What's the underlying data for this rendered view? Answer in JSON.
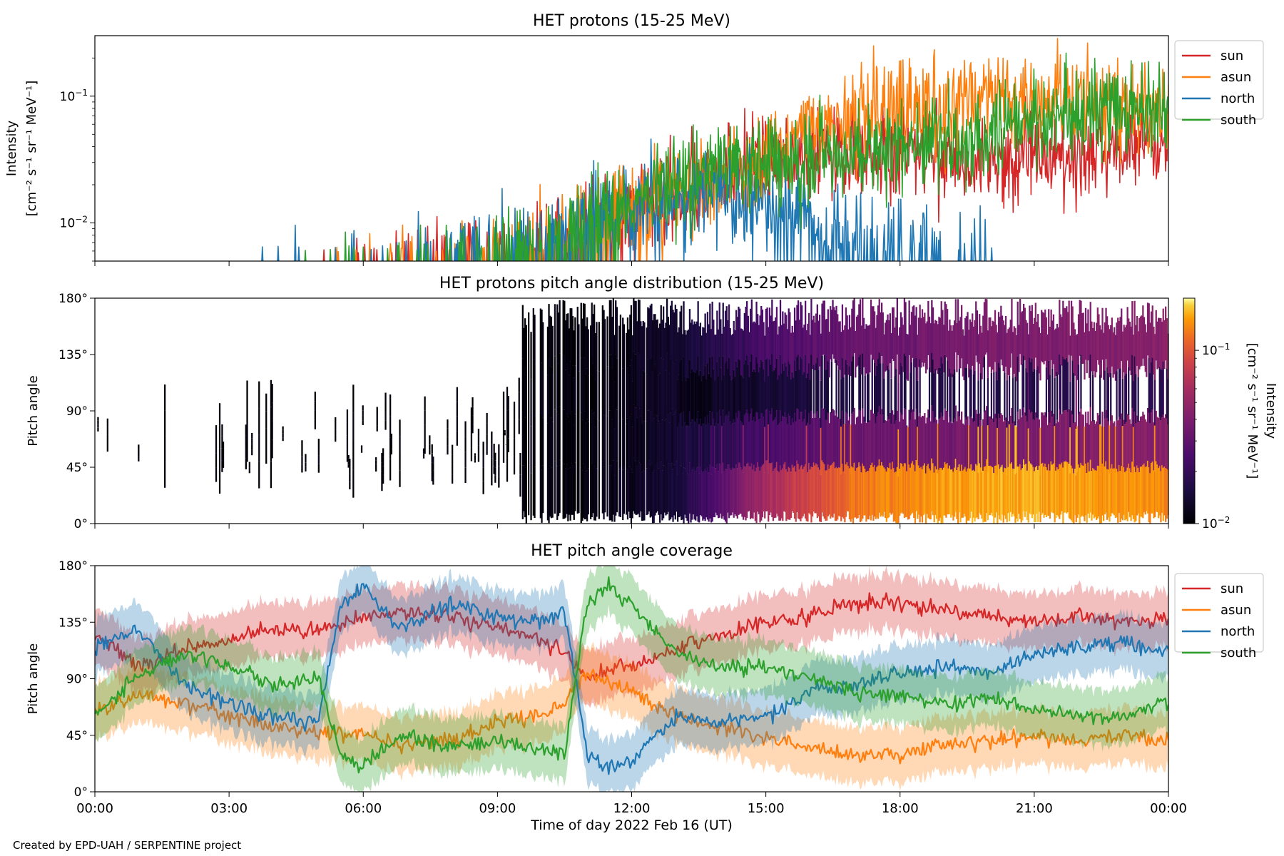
{
  "footer": {
    "credit": "Created by EPD-UAH / SERPENTINE project"
  },
  "chart_data": [
    {
      "type": "line",
      "title": "HET protons (15-25 MeV)",
      "ylabel_line1": "Intensity",
      "ylabel_line2": "[cm⁻² s⁻¹ sr⁻¹ MeV⁻¹]",
      "yscale": "log",
      "ylim": [
        0.005,
        0.3
      ],
      "yticks": [
        {
          "value": 0.01,
          "base": "10",
          "exp": "−2"
        },
        {
          "value": 0.1,
          "base": "10",
          "exp": "−1"
        }
      ],
      "xlim": [
        0,
        24
      ],
      "legend_position": "upper-right-outside",
      "series": [
        {
          "name": "sun",
          "color": "#d62728"
        },
        {
          "name": "asun",
          "color": "#ff7f0e"
        },
        {
          "name": "north",
          "color": "#1f77b4"
        },
        {
          "name": "south",
          "color": "#2ca02c"
        }
      ],
      "detection_floor": 0.0058,
      "envelope": {
        "hours": [
          0,
          6,
          9,
          10.5,
          11.5,
          12.5,
          13.5,
          15,
          16.5,
          18,
          20,
          21.5,
          24
        ],
        "sun": [
          0,
          0.004,
          0.006,
          0.009,
          0.012,
          0.016,
          0.02,
          0.028,
          0.034,
          0.034,
          0.03,
          0.035,
          0.045
        ],
        "asun": [
          0,
          0.004,
          0.006,
          0.009,
          0.012,
          0.016,
          0.02,
          0.028,
          0.07,
          0.08,
          0.09,
          0.1,
          0.07
        ],
        "north": [
          0,
          0.004,
          0.006,
          0.009,
          0.012,
          0.015,
          0.016,
          0.014,
          0.01,
          0.008,
          0.004,
          0.001,
          0.0005
        ],
        "south": [
          0,
          0.004,
          0.006,
          0.009,
          0.013,
          0.018,
          0.024,
          0.03,
          0.035,
          0.04,
          0.05,
          0.07,
          0.08
        ]
      }
    },
    {
      "type": "heatmap",
      "title": "HET protons pitch angle distribution (15-25 MeV)",
      "ylabel": "Pitch angle",
      "ylim": [
        0,
        180
      ],
      "yticks": [
        "0°",
        "45°",
        "90°",
        "135°",
        "180°"
      ],
      "xlim": [
        0,
        24
      ],
      "colormap": "inferno",
      "colorbar": {
        "label_line1": "Intensity",
        "label_line2": "[cm⁻² s⁻¹ sr⁻¹ MeV⁻¹]",
        "scale": "log",
        "range": [
          0.01,
          0.2
        ],
        "ticks": [
          {
            "value": 0.01,
            "base": "10",
            "exp": "−2"
          },
          {
            "value": 0.1,
            "base": "10",
            "exp": "−1"
          }
        ]
      }
    },
    {
      "type": "area",
      "title": "HET pitch angle coverage",
      "ylabel": "Pitch angle",
      "xlabel": "Time of day 2022 Feb 16 (UT)",
      "ylim": [
        0,
        180
      ],
      "yticks": [
        "0°",
        "45°",
        "90°",
        "135°",
        "180°"
      ],
      "xlim": [
        0,
        24
      ],
      "xticks": [
        "00:00",
        "03:00",
        "06:00",
        "09:00",
        "12:00",
        "15:00",
        "18:00",
        "21:00",
        "00:00"
      ],
      "legend_position": "upper-right-outside",
      "band_halfwidth_deg": 22,
      "series": [
        {
          "name": "sun",
          "color": "#d62728",
          "hours": [
            0,
            1,
            2,
            3,
            4,
            5,
            6,
            6.8,
            8,
            9,
            10,
            10.5,
            11,
            12,
            13,
            14,
            15,
            16,
            17,
            18,
            19,
            20,
            21,
            22,
            23,
            24
          ],
          "pitch": [
            125,
            100,
            115,
            120,
            130,
            128,
            140,
            145,
            140,
            130,
            120,
            110,
            90,
            100,
            115,
            125,
            135,
            140,
            150,
            150,
            145,
            140,
            135,
            140,
            135,
            140
          ]
        },
        {
          "name": "asun",
          "color": "#ff7f0e",
          "hours": [
            0,
            1,
            2,
            3,
            4,
            5,
            6,
            6.8,
            8,
            9,
            10,
            10.5,
            11,
            12,
            13,
            14,
            15,
            16,
            17,
            18,
            19,
            20,
            21,
            22,
            23,
            24
          ],
          "pitch": [
            62,
            78,
            70,
            62,
            52,
            48,
            45,
            38,
            42,
            55,
            62,
            72,
            95,
            80,
            60,
            52,
            42,
            36,
            30,
            30,
            38,
            40,
            45,
            40,
            45,
            40
          ]
        },
        {
          "name": "north",
          "color": "#1f77b4",
          "hours": [
            0,
            1,
            2,
            3,
            4,
            5,
            5.5,
            6,
            6.8,
            8,
            9,
            10,
            10.5,
            11,
            11.5,
            12,
            13,
            14,
            15,
            16,
            17,
            18,
            19,
            20,
            21,
            22,
            23,
            24
          ],
          "pitch": [
            115,
            130,
            85,
            70,
            60,
            55,
            150,
            165,
            130,
            150,
            140,
            135,
            145,
            30,
            20,
            25,
            60,
            55,
            60,
            80,
            85,
            95,
            100,
            95,
            110,
            115,
            120,
            110
          ]
        },
        {
          "name": "south",
          "color": "#2ca02c",
          "hours": [
            0,
            1,
            2,
            3,
            4,
            5,
            5.5,
            6,
            6.8,
            8,
            9,
            10,
            10.5,
            11,
            11.5,
            12,
            13,
            14,
            15,
            16,
            17,
            18,
            19,
            20,
            21,
            22,
            23,
            24
          ],
          "pitch": [
            60,
            95,
            110,
            100,
            85,
            90,
            30,
            20,
            45,
            35,
            40,
            35,
            30,
            150,
            165,
            150,
            110,
            100,
            100,
            90,
            80,
            75,
            70,
            75,
            65,
            60,
            60,
            70
          ]
        }
      ]
    }
  ]
}
